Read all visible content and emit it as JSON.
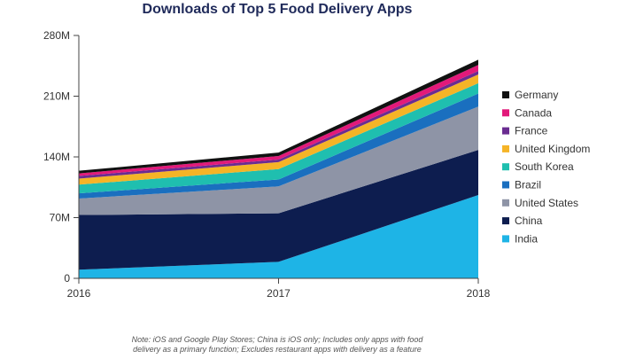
{
  "chart_data": {
    "type": "area",
    "stacked": true,
    "title": "Downloads of Top 5 Food Delivery Apps",
    "title_color": "#1f2a5a",
    "x": [
      "2016",
      "2017",
      "2018"
    ],
    "yticks": [
      "0",
      "70M",
      "140M",
      "210M",
      "280M"
    ],
    "ylim": [
      0,
      280
    ],
    "y_unit": "M",
    "legend_position": "right",
    "grid": false,
    "series": [
      {
        "name": "India",
        "color": "#1eb4e6",
        "values": [
          10,
          19,
          96
        ]
      },
      {
        "name": "China",
        "color": "#0d1d4f",
        "values": [
          63,
          56,
          52
        ]
      },
      {
        "name": "United States",
        "color": "#8e94a6",
        "values": [
          19,
          31,
          50
        ]
      },
      {
        "name": "Brazil",
        "color": "#1a6fbf",
        "values": [
          6,
          8,
          15
        ]
      },
      {
        "name": "South Korea",
        "color": "#1fbfaf",
        "values": [
          10,
          12,
          12
        ]
      },
      {
        "name": "United Kingdom",
        "color": "#f5b427",
        "values": [
          7,
          8,
          10
        ]
      },
      {
        "name": "France",
        "color": "#6a2c91",
        "values": [
          3,
          3,
          4
        ]
      },
      {
        "name": "Canada",
        "color": "#e2197a",
        "values": [
          3,
          4,
          7
        ]
      },
      {
        "name": "Germany",
        "color": "#111111",
        "values": [
          3,
          4,
          6
        ]
      }
    ],
    "note_lines": [
      "Note: iOS and Google Play Stores; China is iOS only; Includes only apps with food",
      "delivery as a primary function; Excludes restaurant apps with delivery as a feature"
    ]
  }
}
